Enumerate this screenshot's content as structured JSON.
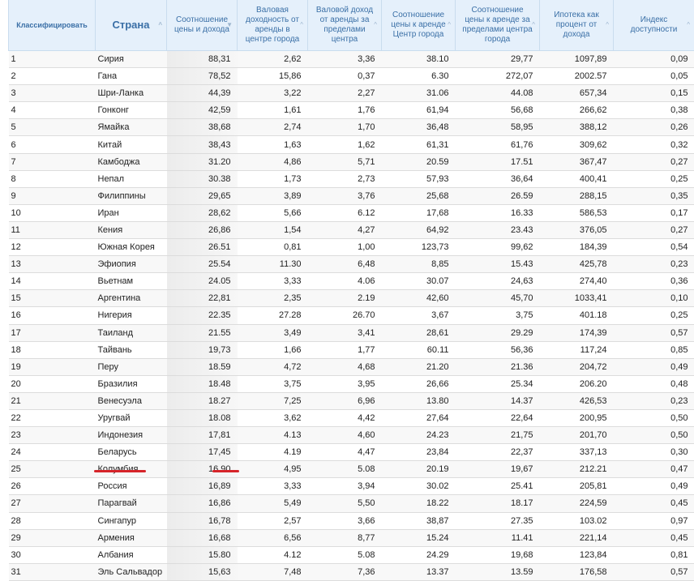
{
  "table": {
    "columns": [
      {
        "label": "Классифицировать",
        "sort": ""
      },
      {
        "label": "Страна",
        "sort": "^"
      },
      {
        "label": "Соотношение цены и дохода",
        "sort": "▼"
      },
      {
        "label": "Валовая доходность от аренды в центре города",
        "sort": "^"
      },
      {
        "label": "Валовой доход от аренды за пределами центра",
        "sort": "^"
      },
      {
        "label": "Соотношение цены к аренде Центр города",
        "sort": "^"
      },
      {
        "label": "Соотношение цены к аренде за пределами центра города",
        "sort": "^"
      },
      {
        "label": "Ипотека как процент от дохода",
        "sort": "^"
      },
      {
        "label": "Индекс доступности",
        "sort": "^"
      }
    ],
    "rows": [
      [
        "1",
        "Сирия",
        "88,31",
        "2,62",
        "3,36",
        "38.10",
        "29,77",
        "1097,89",
        "0,09"
      ],
      [
        "2",
        "Гана",
        "78,52",
        "15,86",
        "0,37",
        "6.30",
        "272,07",
        "2002.57",
        "0,05"
      ],
      [
        "3",
        "Шри-Ланка",
        "44,39",
        "3,22",
        "2,27",
        "31.06",
        "44.08",
        "657,34",
        "0,15"
      ],
      [
        "4",
        "Гонконг",
        "42,59",
        "1,61",
        "1,76",
        "61,94",
        "56,68",
        "266,62",
        "0,38"
      ],
      [
        "5",
        "Ямайка",
        "38,68",
        "2,74",
        "1,70",
        "36,48",
        "58,95",
        "388,12",
        "0,26"
      ],
      [
        "6",
        "Китай",
        "38,43",
        "1,63",
        "1,62",
        "61,31",
        "61,76",
        "309,62",
        "0,32"
      ],
      [
        "7",
        "Камбоджа",
        "31.20",
        "4,86",
        "5,71",
        "20.59",
        "17.51",
        "367,47",
        "0,27"
      ],
      [
        "8",
        "Непал",
        "30.38",
        "1,73",
        "2,73",
        "57,93",
        "36,64",
        "400,41",
        "0,25"
      ],
      [
        "9",
        "Филиппины",
        "29,65",
        "3,89",
        "3,76",
        "25,68",
        "26.59",
        "288,15",
        "0,35"
      ],
      [
        "10",
        "Иран",
        "28,62",
        "5,66",
        "6.12",
        "17,68",
        "16.33",
        "586,53",
        "0,17"
      ],
      [
        "11",
        "Кения",
        "26,86",
        "1,54",
        "4,27",
        "64,92",
        "23.43",
        "376,05",
        "0,27"
      ],
      [
        "12",
        "Южная Корея",
        "26.51",
        "0,81",
        "1,00",
        "123,73",
        "99,62",
        "184,39",
        "0,54"
      ],
      [
        "13",
        "Эфиопия",
        "25.54",
        "11.30",
        "6,48",
        "8,85",
        "15.43",
        "425,78",
        "0,23"
      ],
      [
        "14",
        "Вьетнам",
        "24.05",
        "3,33",
        "4.06",
        "30.07",
        "24,63",
        "274,40",
        "0,36"
      ],
      [
        "15",
        "Аргентина",
        "22,81",
        "2,35",
        "2.19",
        "42,60",
        "45,70",
        "1033,41",
        "0,10"
      ],
      [
        "16",
        "Нигерия",
        "22.35",
        "27.28",
        "26.70",
        "3,67",
        "3,75",
        "401.18",
        "0,25"
      ],
      [
        "17",
        "Таиланд",
        "21.55",
        "3,49",
        "3,41",
        "28,61",
        "29.29",
        "174,39",
        "0,57"
      ],
      [
        "18",
        "Тайвань",
        "19,73",
        "1,66",
        "1,77",
        "60.11",
        "56,36",
        "117,24",
        "0,85"
      ],
      [
        "19",
        "Перу",
        "18.59",
        "4,72",
        "4,68",
        "21.20",
        "21.36",
        "204,72",
        "0,49"
      ],
      [
        "20",
        "Бразилия",
        "18.48",
        "3,75",
        "3,95",
        "26,66",
        "25.34",
        "206.20",
        "0,48"
      ],
      [
        "21",
        "Венесуэла",
        "18.27",
        "7,25",
        "6,96",
        "13.80",
        "14.37",
        "426,53",
        "0,23"
      ],
      [
        "22",
        "Уругвай",
        "18.08",
        "3,62",
        "4,42",
        "27,64",
        "22,64",
        "200,95",
        "0,50"
      ],
      [
        "23",
        "Индонезия",
        "17,81",
        "4.13",
        "4,60",
        "24.23",
        "21,75",
        "201,70",
        "0,50"
      ],
      [
        "24",
        "Беларусь",
        "17,45",
        "4.19",
        "4,47",
        "23,84",
        "22,37",
        "337,13",
        "0,30"
      ],
      [
        "25",
        "Колумбия",
        "16.90",
        "4,95",
        "5.08",
        "20.19",
        "19,67",
        "212.21",
        "0,47"
      ],
      [
        "26",
        "Россия",
        "16,89",
        "3,33",
        "3,94",
        "30.02",
        "25.41",
        "205,81",
        "0,49"
      ],
      [
        "27",
        "Парагвай",
        "16,86",
        "5,49",
        "5,50",
        "18.22",
        "18.17",
        "224,59",
        "0,45"
      ],
      [
        "28",
        "Сингапур",
        "16,78",
        "2,57",
        "3,66",
        "38,87",
        "27.35",
        "103.02",
        "0,97"
      ],
      [
        "29",
        "Армения",
        "16,68",
        "6,56",
        "8,77",
        "15.24",
        "11.41",
        "221,14",
        "0,45"
      ],
      [
        "30",
        "Албания",
        "15.80",
        "4.12",
        "5.08",
        "24.29",
        "19,68",
        "123,84",
        "0,81"
      ],
      [
        "31",
        "Эль Сальвадор",
        "15,63",
        "7,48",
        "7,36",
        "13.37",
        "13.59",
        "176,58",
        "0,57"
      ]
    ],
    "highlighted_row": "Россия",
    "highlight_color": "#d6242a",
    "header_bg": "#e5f0fb",
    "header_text_color": "#3a6fa6"
  }
}
